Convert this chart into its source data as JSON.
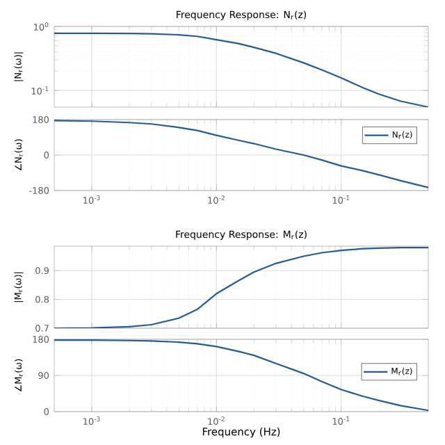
{
  "chart_data": [
    {
      "type": "line",
      "title": "Frequency Response: N$_{r}$(z)",
      "ylabel": "|N$_{r}$(ω)|",
      "log": "xy",
      "grid": true,
      "tick_labels": "y",
      "x": [
        0.0005,
        0.001,
        0.002,
        0.003,
        0.005,
        0.007,
        0.01,
        0.015,
        0.02,
        0.03,
        0.05,
        0.07,
        0.1,
        0.15,
        0.2,
        0.3,
        0.5
      ],
      "xlim": [
        0.0005,
        0.5
      ],
      "xticks": [
        {
          "value": 0.001,
          "label": null
        },
        {
          "value": 0.01,
          "label": null
        },
        {
          "value": 0.1,
          "label": null
        }
      ],
      "ylim": [
        0.055,
        1
      ],
      "yticks": [
        {
          "value": 0.1,
          "label": "10$^{-1}$"
        },
        {
          "value": 1,
          "label": "10$^{0}$"
        }
      ],
      "series": [
        {
          "color": "#1f5c99",
          "values": [
            0.78,
            0.78,
            0.775,
            0.765,
            0.74,
            0.7,
            0.62,
            0.54,
            0.47,
            0.38,
            0.27,
            0.21,
            0.157,
            0.11,
            0.088,
            0.068,
            0.055
          ]
        }
      ]
    },
    {
      "type": "line",
      "ylabel": "∠N$_{r}$(ω)",
      "log": "x",
      "grid": true,
      "legend": "top right",
      "x": [
        0.0005,
        0.001,
        0.002,
        0.003,
        0.005,
        0.007,
        0.01,
        0.015,
        0.02,
        0.03,
        0.05,
        0.07,
        0.1,
        0.15,
        0.2,
        0.3,
        0.5
      ],
      "xlim": [
        0.0005,
        0.5
      ],
      "xticks": [
        {
          "value": 0.001,
          "label": "10$^{-3}$"
        },
        {
          "value": 0.01,
          "label": "10$^{-2}$"
        },
        {
          "value": 0.1,
          "label": "10$^{-1}$"
        }
      ],
      "ylim": [
        -180,
        180
      ],
      "yticks": [
        -180,
        0,
        180
      ],
      "series": [
        {
          "name": "N$_{r}$(z)",
          "color": "#1f5c99",
          "values": [
            175,
            172,
            165,
            158,
            140,
            125,
            100,
            75,
            58,
            30,
            0,
            -25,
            -55,
            -80,
            -100,
            -130,
            -165
          ]
        }
      ]
    },
    {
      "type": "line",
      "title": "Frequency Response: M$_{r}$(z)",
      "ylabel": "|M$_{r}$(ω)|",
      "log": "x",
      "grid": true,
      "tick_labels": "y",
      "x": [
        0.0005,
        0.001,
        0.002,
        0.003,
        0.005,
        0.007,
        0.01,
        0.015,
        0.02,
        0.03,
        0.05,
        0.07,
        0.1,
        0.15,
        0.2,
        0.3,
        0.5
      ],
      "xlim": [
        0.0005,
        0.5
      ],
      "xticks": [
        {
          "value": 0.001,
          "label": null
        },
        {
          "value": 0.01,
          "label": null
        },
        {
          "value": 0.1,
          "label": null
        }
      ],
      "ylim": [
        0.7,
        0.985
      ],
      "yticks": [
        0.7,
        0.8,
        0.9
      ],
      "series": [
        {
          "color": "#1f5c99",
          "values": [
            0.7,
            0.701,
            0.705,
            0.712,
            0.735,
            0.765,
            0.82,
            0.865,
            0.895,
            0.925,
            0.95,
            0.962,
            0.97,
            0.976,
            0.978,
            0.98,
            0.98
          ]
        }
      ]
    },
    {
      "type": "line",
      "xlabel": "Frequency  (Hz)",
      "ylabel": "∠M$_{r}$(ω)",
      "log": "x",
      "grid": true,
      "legend": "right",
      "x": [
        0.0005,
        0.001,
        0.002,
        0.003,
        0.005,
        0.007,
        0.01,
        0.015,
        0.02,
        0.03,
        0.05,
        0.07,
        0.1,
        0.15,
        0.2,
        0.3,
        0.5
      ],
      "xlim": [
        0.0005,
        0.5
      ],
      "xticks": [
        {
          "value": 0.001,
          "label": "10$^{-3}$"
        },
        {
          "value": 0.01,
          "label": "10$^{-2}$"
        },
        {
          "value": 0.1,
          "label": "10$^{-1}$"
        }
      ],
      "ylim": [
        0,
        180
      ],
      "yticks": [
        0,
        90,
        180
      ],
      "series": [
        {
          "name": "M$_{r}$(z)",
          "color": "#1f5c99",
          "values": [
            178,
            178,
            177,
            176,
            173,
            169,
            162,
            150,
            140,
            120,
            95,
            75,
            55,
            38,
            28,
            15,
            3
          ]
        }
      ]
    }
  ]
}
